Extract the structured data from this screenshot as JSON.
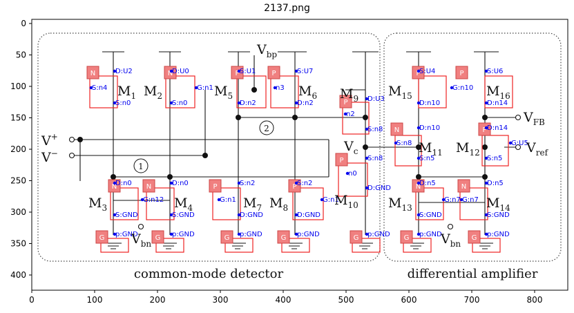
{
  "title": "2137.png",
  "axes": {
    "x_ticks": [
      "0",
      "100",
      "200",
      "300",
      "400",
      "500",
      "600",
      "700",
      "800"
    ],
    "y_ticks": [
      "0",
      "50",
      "100",
      "150",
      "200",
      "250",
      "300",
      "350",
      "400"
    ]
  },
  "diagram": {
    "captions": {
      "left": "common-mode detector",
      "right": "differential amplifier"
    },
    "symbols": {
      "vbp": "V",
      "vbp_sub": "bp",
      "vfb": "V",
      "vfb_sub": "FB",
      "vplus": "V",
      "vplus_sup": "+",
      "vminus": "V",
      "vminus_sup": "−",
      "vc": "V",
      "vc_sub": "c",
      "vref": "V",
      "vref_sub": "ref",
      "vbn_left": "V",
      "vbn_left_sub": "bn",
      "vbn_right": "V",
      "vbn_right_sub": "bn",
      "node1": "1",
      "node2": "2"
    },
    "transistors": [
      {
        "name": "M",
        "sub": "1"
      },
      {
        "name": "M",
        "sub": "2"
      },
      {
        "name": "M",
        "sub": "5"
      },
      {
        "name": "M",
        "sub": "6"
      },
      {
        "name": "M",
        "sub": "9"
      },
      {
        "name": "M",
        "sub": "15"
      },
      {
        "name": "M",
        "sub": "16"
      },
      {
        "name": "M",
        "sub": "11"
      },
      {
        "name": "M",
        "sub": "12"
      },
      {
        "name": "M",
        "sub": "3"
      },
      {
        "name": "M",
        "sub": "4"
      },
      {
        "name": "M",
        "sub": "7"
      },
      {
        "name": "M",
        "sub": "8"
      },
      {
        "name": "M",
        "sub": "10"
      },
      {
        "name": "M",
        "sub": "13"
      },
      {
        "name": "M",
        "sub": "14"
      }
    ],
    "type_tags": [
      "N",
      "N",
      "P",
      "P",
      "P",
      "P",
      "P",
      "N",
      "P",
      "N",
      "N",
      "P",
      "P",
      "P",
      "N",
      "N"
    ],
    "ground_tags": [
      "G",
      "G",
      "G",
      "G",
      "G",
      "G",
      "G"
    ],
    "node_labels": [
      "D:U2",
      "S:n4",
      "S:n0",
      "D:U0",
      "G:n1",
      "S:n0",
      "S:U1",
      "S:U7",
      "n3",
      "D:n2",
      "D:n2",
      "D:U3",
      "n2",
      "S:n8",
      "S:U4",
      "S:U6",
      "G:n10",
      "D:n10",
      "D:n14",
      "D:n10",
      "D:n14",
      "S:n8",
      "G:U5",
      "S:n5",
      "S:n5",
      "S:n8",
      "n0",
      "D:GND",
      "D:n0",
      "D:n0",
      "S:n2",
      "S:n2",
      "G:n12",
      "G:n1",
      "G:n1",
      "S:GND",
      "S:GND",
      "D:GND",
      "D:GND",
      "D:n5",
      "D:n5",
      "G:n7",
      "G:n7",
      "S:GND",
      "S:GND",
      "p:GND",
      "p:GND",
      "p:GND",
      "p:GND",
      "p:GND",
      "p:GND",
      "p:GND"
    ]
  }
}
